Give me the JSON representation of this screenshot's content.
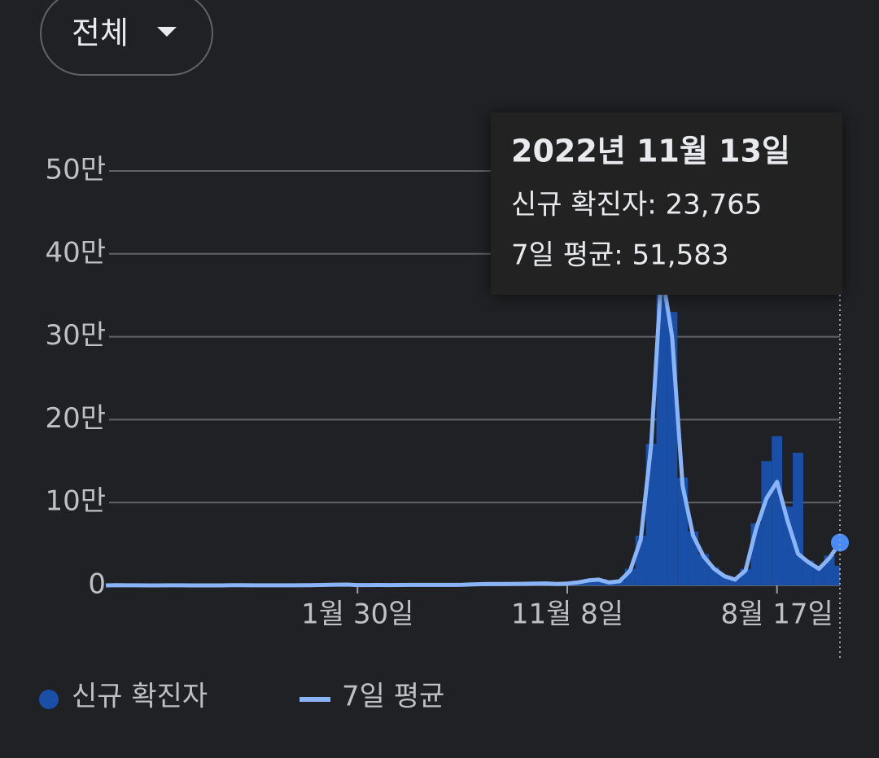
{
  "filter": {
    "label": "전체"
  },
  "tooltip": {
    "title": "2022년 11월 13일",
    "lines": [
      "신규 확진자: 23,765",
      "7일 평균: 51,583"
    ]
  },
  "chart_data": {
    "type": "bar_line",
    "categories": [
      null,
      null,
      null,
      null,
      null,
      null,
      null,
      null,
      null,
      null,
      null,
      null,
      null,
      null,
      null,
      null,
      null,
      null,
      null,
      null,
      null,
      null,
      null,
      null,
      "1월 30일",
      null,
      null,
      null,
      null,
      null,
      null,
      null,
      null,
      null,
      null,
      null,
      null,
      null,
      null,
      null,
      null,
      null,
      null,
      null,
      "11월 8일",
      null,
      null,
      null,
      null,
      null,
      null,
      null,
      null,
      null,
      null,
      null,
      null,
      null,
      null,
      null,
      null,
      null,
      null,
      null,
      "8월 17일",
      null,
      null,
      null,
      null,
      null,
      null
    ],
    "series": [
      {
        "name": "신규 확진자",
        "color": "#1a4fa8",
        "values": [
          20,
          500,
          120,
          60,
          40,
          50,
          60,
          50,
          40,
          50,
          40,
          50,
          250,
          350,
          110,
          90,
          110,
          100,
          120,
          260,
          450,
          700,
          1000,
          1100,
          350,
          450,
          500,
          420,
          550,
          650,
          650,
          600,
          650,
          600,
          750,
          1300,
          1700,
          1900,
          1800,
          2000,
          2100,
          2500,
          2600,
          1800,
          2500,
          4000,
          7000,
          7500,
          4000,
          6000,
          20000,
          60000,
          171000,
          400000,
          330000,
          130000,
          65000,
          38000,
          22000,
          12000,
          8000,
          20000,
          75000,
          150000,
          180000,
          95000,
          160000,
          30000,
          22000,
          36000,
          23765
        ]
      },
      {
        "name": "7일 평균",
        "color": "#8ab4f8",
        "values": [
          10,
          300,
          100,
          50,
          40,
          40,
          50,
          50,
          40,
          40,
          40,
          40,
          150,
          300,
          120,
          80,
          100,
          90,
          100,
          200,
          400,
          600,
          900,
          1000,
          400,
          400,
          450,
          400,
          500,
          600,
          600,
          550,
          600,
          550,
          700,
          1200,
          1600,
          1800,
          1700,
          1900,
          2000,
          2300,
          2400,
          1700,
          2300,
          3500,
          6000,
          7000,
          3500,
          5000,
          18000,
          55000,
          170000,
          380000,
          300000,
          120000,
          60000,
          35000,
          20000,
          11000,
          7000,
          18000,
          68000,
          105000,
          125000,
          78000,
          38000,
          28000,
          20000,
          33000,
          51583
        ]
      }
    ],
    "ylim": [
      0,
      500000
    ],
    "yticks": [
      0,
      {
        "value": 100000,
        "label": "10만"
      },
      {
        "value": 200000,
        "label": "20만"
      },
      {
        "value": 300000,
        "label": "30만"
      },
      {
        "value": 400000,
        "label": "40만"
      },
      {
        "value": 500000,
        "label": "50만"
      }
    ],
    "grid": true
  }
}
